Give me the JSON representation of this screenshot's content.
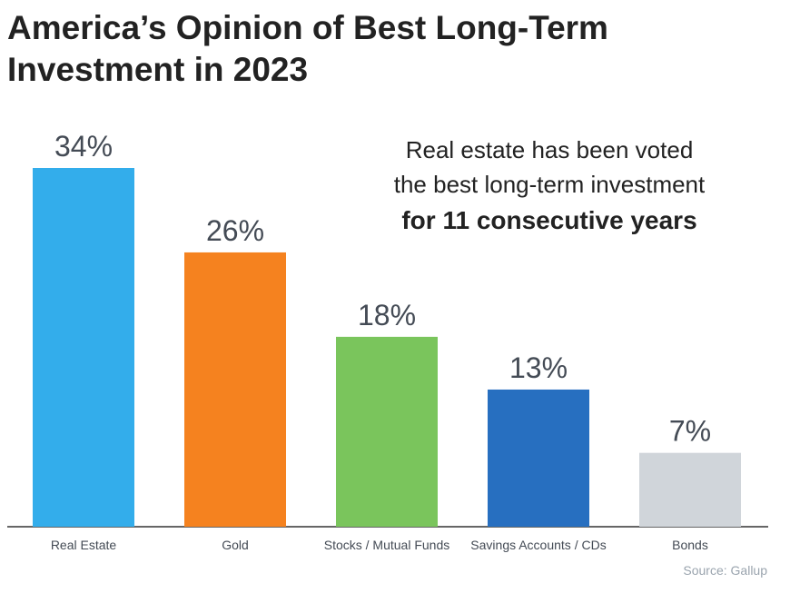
{
  "title_lines": [
    "America’s Opinion of Best Long-Term",
    "Investment in 2023"
  ],
  "callout": {
    "line1": "Real estate has been voted",
    "line2": "the best long-term investment",
    "line3": "for 11 consecutive years"
  },
  "source": "Source: Gallup",
  "colors": {
    "real_estate": "#33adeb",
    "gold": "#f5821f",
    "stocks": "#7ac55c",
    "savings": "#276fc0",
    "bonds": "#d0d5da",
    "label_text": "#444b55",
    "axis": "#333333"
  },
  "chart_data": {
    "type": "bar",
    "title": "America’s Opinion of Best Long-Term Investment in 2023",
    "categories": [
      "Real Estate",
      "Gold",
      "Stocks / Mutual Funds",
      "Savings Accounts / CDs",
      "Bonds"
    ],
    "values": [
      34,
      26,
      18,
      13,
      7
    ],
    "value_labels": [
      "34%",
      "26%",
      "18%",
      "13%",
      "7%"
    ],
    "bar_colors": [
      "#33adeb",
      "#f5821f",
      "#7ac55c",
      "#276fc0",
      "#d0d5da"
    ],
    "ylim": [
      0,
      34
    ],
    "grid": false,
    "legend": "none",
    "xlabel": "",
    "ylabel": ""
  }
}
